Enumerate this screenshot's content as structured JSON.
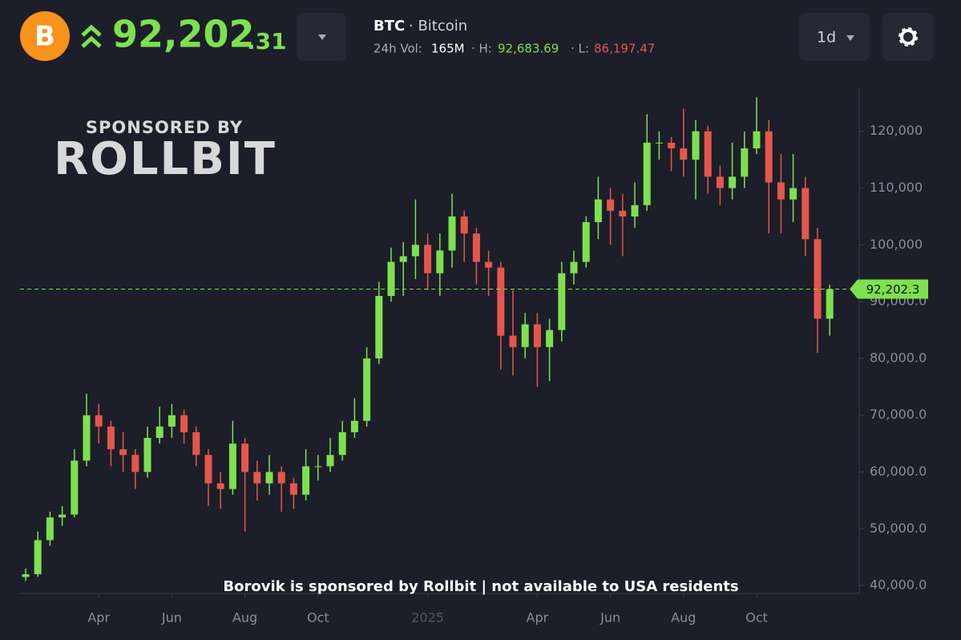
{
  "header": {
    "price_main": "92,202",
    "price_decimals": ".31",
    "symbol": "BTC",
    "name": "· Bitcoin",
    "volume_label": "24h Vol:",
    "volume": "165M",
    "high_label": "· H:",
    "high": "92,683.69",
    "low_label": "· L:",
    "low": "86,197.47",
    "interval": "1d"
  },
  "sponsor": {
    "heading": "SPONSORED BY",
    "brand": "ROLLBIT",
    "footer": "Borovik is sponsored by Rollbit | not available to USA residents"
  },
  "chart_data": {
    "type": "candlestick",
    "categories": [
      null,
      null,
      null,
      null,
      null,
      null,
      "Apr",
      null,
      null,
      null,
      null,
      null,
      "Jun",
      null,
      null,
      null,
      null,
      null,
      "Aug",
      null,
      null,
      null,
      null,
      null,
      "Oct",
      null,
      null,
      null,
      null,
      null,
      null,
      null,
      null,
      "2025",
      null,
      null,
      null,
      null,
      null,
      null,
      null,
      null,
      "Apr",
      null,
      null,
      null,
      null,
      null,
      "Jun",
      null,
      null,
      null,
      null,
      null,
      "Aug",
      null,
      null,
      null,
      null,
      null,
      "Oct",
      null,
      null,
      null,
      null,
      null,
      null
    ],
    "open": [
      41500,
      42000,
      48000,
      52000,
      52500,
      62000,
      70000,
      68000,
      64000,
      63000,
      60000,
      66000,
      68000,
      70000,
      67000,
      63000,
      58000,
      57000,
      65000,
      60000,
      58000,
      60000,
      58000,
      56000,
      61000,
      61000,
      63000,
      67000,
      69000,
      80000,
      91000,
      97000,
      98000,
      100000,
      95000,
      99000,
      105000,
      102000,
      97000,
      96000,
      84000,
      82000,
      86000,
      82000,
      85000,
      95000,
      97000,
      104000,
      108000,
      106000,
      105000,
      107000,
      118000,
      118000,
      117000,
      115000,
      120000,
      112000,
      110000,
      112000,
      117000,
      120000,
      111000,
      108000,
      110000,
      101000,
      87000
    ],
    "high": [
      43000,
      49500,
      53000,
      54000,
      64000,
      73800,
      72000,
      69000,
      67000,
      64000,
      68000,
      71500,
      72000,
      71000,
      68000,
      64000,
      60000,
      69000,
      66000,
      62000,
      63000,
      61000,
      59000,
      64000,
      63000,
      66000,
      69000,
      73000,
      82000,
      93500,
      99500,
      100500,
      108000,
      102000,
      102000,
      109000,
      106000,
      103000,
      99000,
      97000,
      92000,
      88000,
      88000,
      87000,
      97000,
      99000,
      105000,
      112000,
      110000,
      109000,
      111000,
      123000,
      120000,
      119000,
      124000,
      122000,
      121000,
      114000,
      118000,
      120000,
      126000,
      122000,
      116000,
      116000,
      112000,
      103000,
      93000
    ],
    "low": [
      40800,
      41500,
      47000,
      50500,
      52000,
      61000,
      65000,
      61000,
      60000,
      57000,
      59000,
      65000,
      66000,
      65000,
      61000,
      54000,
      53500,
      56000,
      49500,
      55000,
      56000,
      53000,
      53500,
      55000,
      58500,
      60000,
      62000,
      66000,
      68000,
      79000,
      90000,
      91000,
      94000,
      92000,
      91000,
      96000,
      97000,
      93000,
      91000,
      78000,
      77000,
      80000,
      75000,
      76000,
      83000,
      93000,
      96000,
      101000,
      100000,
      98000,
      103000,
      106000,
      115000,
      113000,
      112000,
      108000,
      109000,
      107000,
      108000,
      110000,
      116000,
      102000,
      102000,
      104000,
      98000,
      81000,
      84000
    ],
    "close": [
      42000,
      48000,
      52000,
      52500,
      62000,
      70000,
      68000,
      64000,
      63000,
      60000,
      66000,
      68000,
      70000,
      67000,
      63000,
      58000,
      57000,
      65000,
      60000,
      58000,
      60000,
      58000,
      56000,
      61000,
      61000,
      63000,
      67000,
      69000,
      80000,
      91000,
      97000,
      98000,
      100000,
      95000,
      99000,
      105000,
      102000,
      97000,
      96000,
      84000,
      82000,
      86000,
      82000,
      85000,
      95000,
      97000,
      104000,
      108000,
      106000,
      105000,
      107000,
      118000,
      118000,
      117000,
      115000,
      120000,
      112000,
      110000,
      112000,
      117000,
      120000,
      111000,
      108000,
      110000,
      101000,
      87000,
      92202
    ],
    "up_color": "#7ee04f",
    "down_color": "#e5574d",
    "ylim": [
      38600,
      129000
    ],
    "yticks": [
      {
        "value": 40000,
        "label": "40,000.0"
      },
      {
        "value": 50000,
        "label": "50,000.0"
      },
      {
        "value": 60000,
        "label": "60,000.0"
      },
      {
        "value": 70000,
        "label": "70,000.0"
      },
      {
        "value": 80000,
        "label": "80,000.0"
      },
      {
        "value": 90000,
        "label": "90,000.0"
      },
      {
        "value": 100000,
        "label": "100,000"
      },
      {
        "value": 110000,
        "label": "110,000"
      },
      {
        "value": 120000,
        "label": "120,000"
      }
    ],
    "last_price": {
      "value": 92202.3,
      "label": "92,202.3"
    }
  }
}
